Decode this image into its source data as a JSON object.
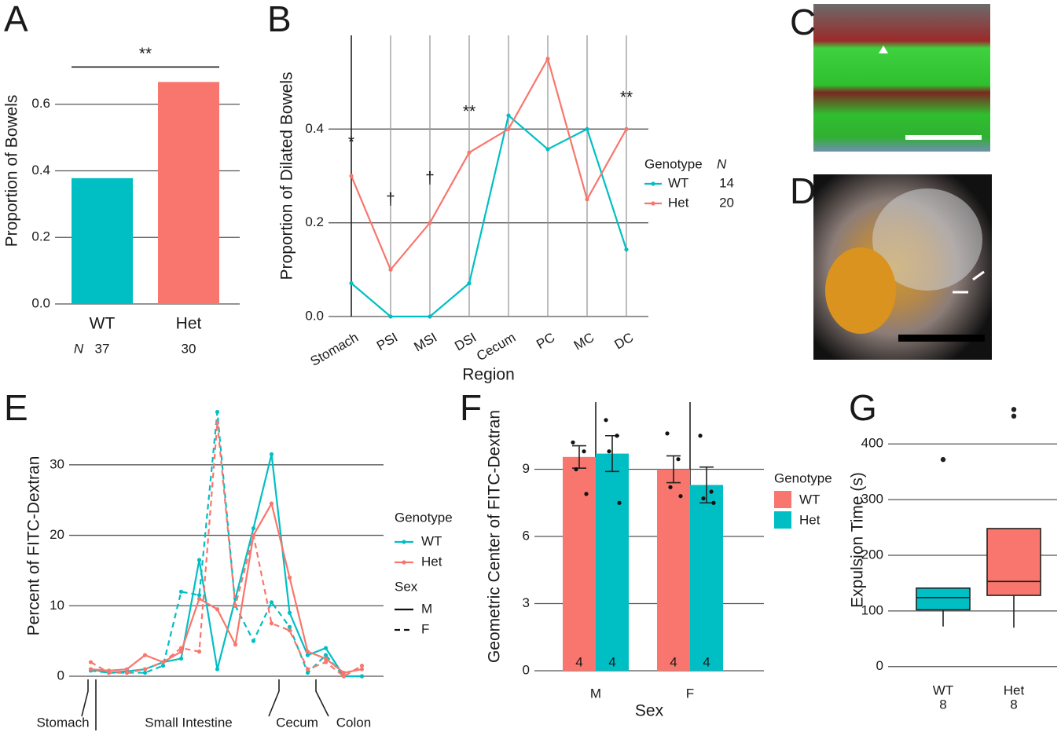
{
  "images": [
    {
      "panel": "C"
    },
    {
      "panel": "D"
    }
  ],
  "chart_data": [
    {
      "panel": "A",
      "type": "bar",
      "categories": [
        "WT",
        "Het"
      ],
      "values": [
        0.378,
        0.667
      ],
      "colors": [
        "#00bfc4",
        "#f8766d"
      ],
      "ylim": [
        0,
        0.8
      ],
      "yticks": [
        {
          "value": 0,
          "label": "0.0"
        },
        0.2,
        0.4,
        0.6
      ],
      "ylabel": "Proportion of Bowels",
      "annotation": "**",
      "n_label": "N",
      "n": [
        37,
        30
      ],
      "grid": true
    },
    {
      "panel": "B",
      "type": "line",
      "categories": [
        "Stomach",
        "PSI",
        "MSI",
        "DSI",
        "Cecum",
        "PC",
        "MC",
        "DC"
      ],
      "series": [
        {
          "name": "WT",
          "color": "#00bfc4",
          "values": [
            0.071,
            0,
            0,
            0.071,
            0.429,
            0.357,
            0.4,
            0.143
          ],
          "n": 14
        },
        {
          "name": "Het",
          "color": "#f8766d",
          "values": [
            0.3,
            0.1,
            0.2,
            0.35,
            0.4,
            0.55,
            0.25,
            0.4
          ],
          "n": 20
        }
      ],
      "annotations": [
        "*",
        "†",
        "†",
        "**",
        null,
        null,
        null,
        "**"
      ],
      "ylim": [
        0,
        0.6
      ],
      "yticks": [
        {
          "value": 0,
          "label": "0.0"
        },
        0.2,
        0.4
      ],
      "xlabel": "Region",
      "ylabel": "Proportion of Dilated Bowels",
      "legend_title": "Genotype",
      "legend_n_title": "N",
      "grid": true
    },
    {
      "panel": "E",
      "type": "line",
      "categories": [
        null,
        null,
        null,
        null,
        null,
        null,
        null,
        null,
        null,
        null,
        null,
        null,
        null,
        null,
        null,
        null
      ],
      "series": [
        {
          "name": "WT",
          "sex": "M",
          "color": "#00bfc4",
          "dash": false,
          "values": [
            1,
            0.5,
            0.7,
            1,
            2,
            2.5,
            16.5,
            1,
            11,
            21,
            31.5,
            9,
            3,
            4,
            0,
            0
          ]
        },
        {
          "name": "WT",
          "sex": "F",
          "color": "#00bfc4",
          "dash": true,
          "values": [
            0.8,
            0.5,
            0.5,
            0.5,
            1.5,
            12,
            11.5,
            37.5,
            10,
            5,
            10.5,
            7,
            0.5,
            3,
            0,
            0
          ]
        },
        {
          "name": "Het",
          "sex": "M",
          "color": "#f8766d",
          "dash": false,
          "values": [
            1,
            0.8,
            1,
            3,
            2,
            3.5,
            11,
            9.5,
            4.5,
            20,
            24.5,
            14,
            3.5,
            2.5,
            0.5,
            1
          ]
        },
        {
          "name": "Het",
          "sex": "F",
          "color": "#f8766d",
          "dash": true,
          "values": [
            2,
            0.5,
            0.5,
            1,
            2,
            4,
            3.5,
            36,
            10,
            20,
            7.5,
            6.5,
            1,
            2,
            0,
            1.5
          ]
        }
      ],
      "regions": [
        "Stomach",
        "Small Intestine",
        "Cecum",
        "Colon"
      ],
      "ylim": [
        -1,
        38
      ],
      "yticks": [
        0,
        10,
        20,
        30
      ],
      "ylabel": "Percent of FITC-Dextran",
      "legend_title": "Genotype",
      "sex_title": "Sex",
      "grid": true
    },
    {
      "panel": "F",
      "type": "bar",
      "categories": [
        "M",
        "F"
      ],
      "series": [
        {
          "name": "WT",
          "color": "#f8766d",
          "values": [
            9.55,
            9.0
          ],
          "errors": [
            0.5,
            0.6
          ],
          "points": [
            [
              10.2,
              9.8,
              9.0,
              7.9
            ],
            [
              10.6,
              9.45,
              8.2,
              7.8
            ]
          ],
          "n": [
            4,
            4
          ]
        },
        {
          "name": "Het",
          "color": "#00bfc4",
          "values": [
            9.7,
            8.3
          ],
          "errors": [
            0.8,
            0.8
          ],
          "points": [
            [
              11.2,
              10.5,
              9.8,
              7.5
            ],
            [
              10.5,
              8.0,
              7.7,
              7.5
            ]
          ],
          "n": [
            4,
            4
          ]
        }
      ],
      "ylim": [
        0,
        12
      ],
      "yticks": [
        0,
        3,
        6,
        9
      ],
      "xlabel": "Sex",
      "ylabel": "Geometric Center of FITC-Dextran",
      "legend_title": "Genotype",
      "grid": true
    },
    {
      "panel": "G",
      "type": "box",
      "categories": [
        "WT",
        "Het"
      ],
      "n": [
        8,
        8
      ],
      "colors": [
        "#00bfc4",
        "#f8766d"
      ],
      "boxes": [
        {
          "whislo": 72,
          "q1": 102,
          "med": 124,
          "q3": 141,
          "whishi": 141,
          "fliers": [
            372
          ]
        },
        {
          "whislo": 70,
          "q1": 128,
          "med": 153,
          "q3": 248,
          "whishi": 248,
          "fliers": [
            450,
            462
          ]
        }
      ],
      "ylim": [
        -30,
        485
      ],
      "yticks": [
        0,
        100,
        200,
        300,
        400
      ],
      "ylabel": "Expulsion Time (s)",
      "grid": true
    }
  ]
}
